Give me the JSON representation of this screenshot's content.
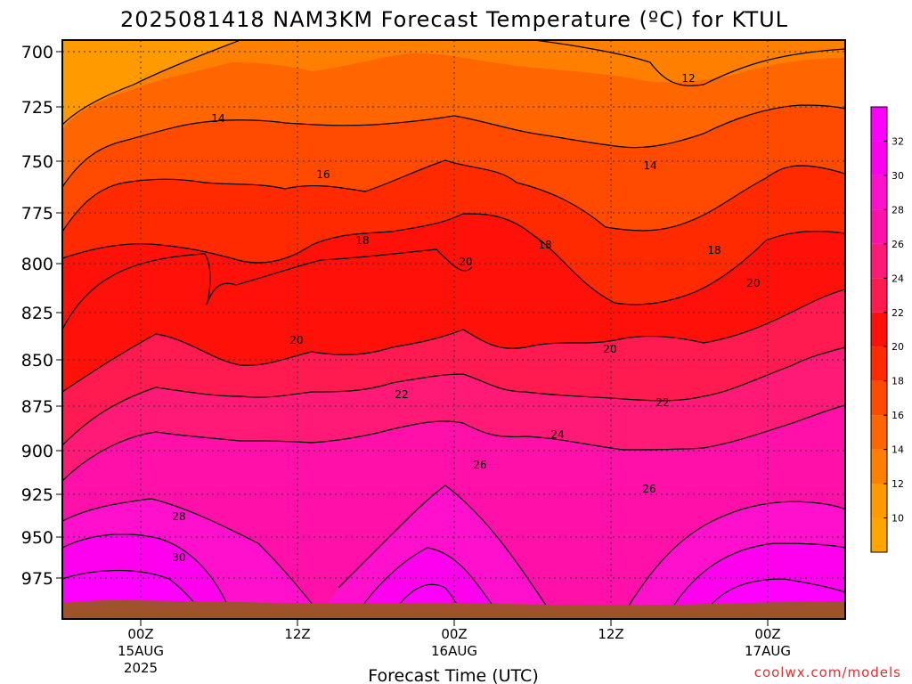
{
  "chart_data": {
    "type": "heatmap",
    "title": "2025081418 NAM3KM Forecast Temperature (ºC) for KTUL",
    "xlabel": "Forecast Time (UTC)",
    "ylabel": "",
    "y_scale": "pressure (hPa), reversed",
    "ylim": [
      990,
      697
    ],
    "yticks": [
      700,
      725,
      750,
      775,
      800,
      825,
      850,
      875,
      900,
      925,
      950,
      975
    ],
    "xticks": [
      {
        "label": "00Z",
        "sub": "15AUG",
        "sub2": "2025"
      },
      {
        "label": "12Z",
        "sub": "",
        "sub2": ""
      },
      {
        "label": "00Z",
        "sub": "16AUG",
        "sub2": ""
      },
      {
        "label": "12Z",
        "sub": "",
        "sub2": ""
      },
      {
        "label": "00Z",
        "sub": "17AUG",
        "sub2": ""
      }
    ],
    "colorbar": {
      "ticks": [
        10,
        12,
        14,
        16,
        18,
        20,
        22,
        24,
        26,
        28,
        30,
        32
      ],
      "bands": [
        {
          "from": 8,
          "to": 10,
          "color": "#FFA500"
        },
        {
          "from": 10,
          "to": 12,
          "color": "#FF9A00"
        },
        {
          "from": 12,
          "to": 14,
          "color": "#FF8000"
        },
        {
          "from": 14,
          "to": 16,
          "color": "#FF6600"
        },
        {
          "from": 16,
          "to": 18,
          "color": "#FF4A00"
        },
        {
          "from": 18,
          "to": 20,
          "color": "#FF2A00"
        },
        {
          "from": 20,
          "to": 22,
          "color": "#FF1008"
        },
        {
          "from": 22,
          "to": 24,
          "color": "#FF1A50"
        },
        {
          "from": 24,
          "to": 26,
          "color": "#FF1A78"
        },
        {
          "from": 26,
          "to": 28,
          "color": "#FF10A8"
        },
        {
          "from": 28,
          "to": 30,
          "color": "#FF10CC"
        },
        {
          "from": 30,
          "to": 32,
          "color": "#FF00EE"
        },
        {
          "from": 32,
          "to": 34,
          "color": "#FF00FF"
        }
      ]
    },
    "contour_labels": [
      {
        "text": "12"
      },
      {
        "text": "14"
      },
      {
        "text": "14"
      },
      {
        "text": "16"
      },
      {
        "text": "18"
      },
      {
        "text": "18"
      },
      {
        "text": "18"
      },
      {
        "text": "20"
      },
      {
        "text": "20"
      },
      {
        "text": "20"
      },
      {
        "text": "20"
      },
      {
        "text": "22"
      },
      {
        "text": "22"
      },
      {
        "text": "24"
      },
      {
        "text": "26"
      },
      {
        "text": "26"
      },
      {
        "text": "28"
      },
      {
        "text": "30"
      }
    ],
    "ground_color": "#A0522D",
    "grid": true
  },
  "credit": "coolwx.com/models"
}
